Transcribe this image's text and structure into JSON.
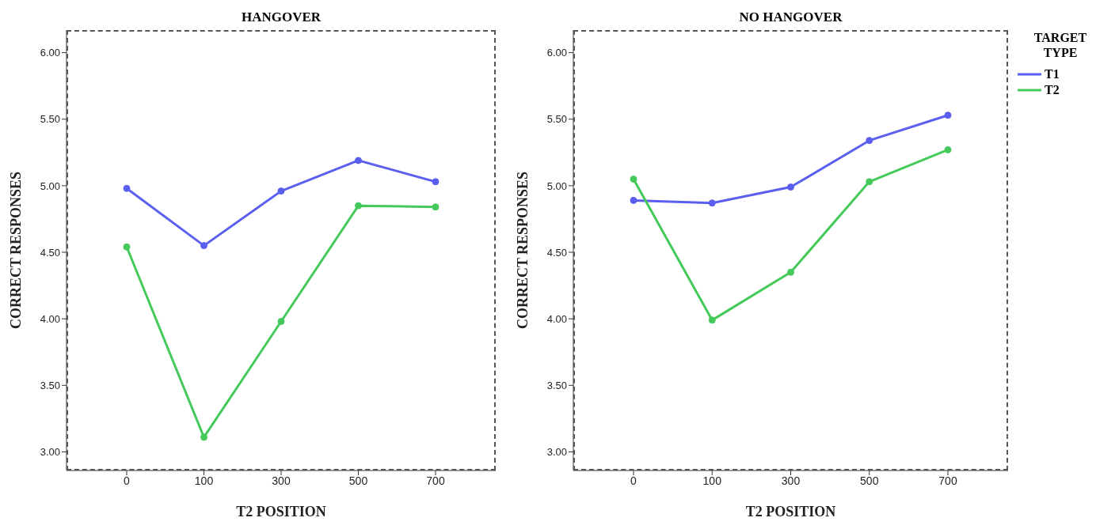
{
  "chart_data": [
    {
      "type": "line",
      "title": "HANGOVER",
      "xlabel": "T2 POSITION",
      "ylabel": "CORRECT RESPONSES",
      "categories": [
        "0",
        "100",
        "300",
        "500",
        "700"
      ],
      "series": [
        {
          "color": "#5a5ff0",
          "values": [
            4.98,
            4.55,
            4.96,
            5.19,
            5.03
          ]
        },
        {
          "color": "#44c95a",
          "values": [
            4.54,
            3.11,
            3.98,
            4.85,
            4.84
          ]
        }
      ],
      "ylim": [
        2.86,
        6.17
      ],
      "yticks": [
        {
          "value": 3,
          "label": "3.00"
        },
        {
          "value": 3.5,
          "label": "3.50"
        },
        {
          "value": 4,
          "label": "4.00"
        },
        {
          "value": 4.5,
          "label": "4.50"
        },
        {
          "value": 5,
          "label": "5.00"
        },
        {
          "value": 5.5,
          "label": "5.50"
        },
        {
          "value": 6,
          "label": "6.00"
        }
      ],
      "grid": false,
      "legend": false,
      "marker": "circle",
      "line_style": "solid"
    },
    {
      "type": "line",
      "title": "NO HANGOVER",
      "xlabel": "T2 POSITION",
      "ylabel": "CORRECT RESPONSES",
      "legend_title": "TARGET TYPE",
      "categories": [
        "0",
        "100",
        "300",
        "500",
        "700"
      ],
      "series": [
        {
          "name": "T1",
          "color": "#5a5ff0",
          "values": [
            4.89,
            4.87,
            4.99,
            5.34,
            5.53
          ]
        },
        {
          "name": "T2",
          "color": "#44c95a",
          "values": [
            5.05,
            3.99,
            4.35,
            5.03,
            5.27
          ]
        }
      ],
      "ylim": [
        2.86,
        6.17
      ],
      "yticks": [
        {
          "value": 3,
          "label": "3.00"
        },
        {
          "value": 3.5,
          "label": "3.50"
        },
        {
          "value": 4,
          "label": "4.00"
        },
        {
          "value": 4.5,
          "label": "4.50"
        },
        {
          "value": 5,
          "label": "5.00"
        },
        {
          "value": 5.5,
          "label": "5.50"
        },
        {
          "value": 6,
          "label": "6.00"
        }
      ],
      "grid": false,
      "legend": "top right",
      "marker": "circle",
      "line_style": "solid"
    }
  ]
}
